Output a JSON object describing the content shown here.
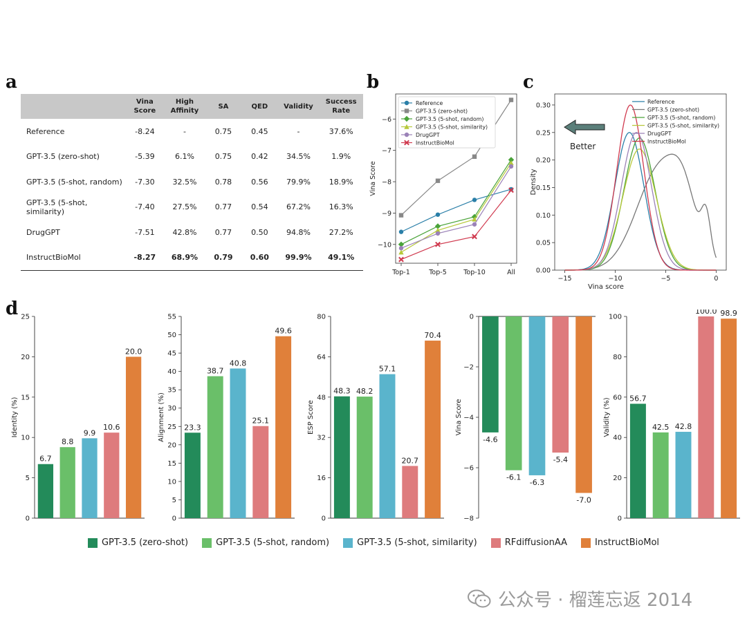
{
  "panels": {
    "a": "a",
    "b": "b",
    "c": "c",
    "d": "d"
  },
  "table": {
    "headers": [
      [
        "",
        ""
      ],
      [
        "Vina",
        "Score"
      ],
      [
        "High",
        "Affinity"
      ],
      [
        "SA",
        ""
      ],
      [
        "QED",
        ""
      ],
      [
        "Validity",
        ""
      ],
      [
        "Success",
        "Rate"
      ]
    ],
    "rows": [
      {
        "name": "Reference",
        "cells": [
          "-8.24",
          "-",
          "0.75",
          "0.45",
          "-",
          "37.6%"
        ]
      },
      {
        "name": "GPT-3.5 (zero-shot)",
        "cells": [
          "-5.39",
          "6.1%",
          "0.75",
          "0.42",
          "34.5%",
          "1.9%"
        ]
      },
      {
        "name": "GPT-3.5 (5-shot, random)",
        "cells": [
          "-7.30",
          "32.5%",
          "0.78",
          "0.56",
          "79.9%",
          "18.9%"
        ]
      },
      {
        "name": "GPT-3.5 (5-shot, similarity)",
        "cells": [
          "-7.40",
          "27.5%",
          "0.77",
          "0.54",
          "67.2%",
          "16.3%"
        ]
      },
      {
        "name": "DrugGPT",
        "cells": [
          "-7.51",
          "42.8%",
          "0.77",
          "0.50",
          "94.8%",
          "27.2%"
        ]
      },
      {
        "name": "InstructBioMol",
        "cells": [
          "-8.27",
          "68.9%",
          "0.79",
          "0.60",
          "99.9%",
          "49.1%"
        ],
        "bold": true
      }
    ]
  },
  "colors": {
    "zero": "#238b5a",
    "random": "#6abf69",
    "similarity": "#5ab4cc",
    "rfdiff": "#de7b7d",
    "instruct": "#e0803a"
  },
  "chart_data": [
    {
      "type": "line",
      "panel": "b",
      "categories": [
        "Top-1",
        "Top-5",
        "Top-10",
        "All"
      ],
      "ylabel": "Vina Score",
      "ylim": [
        -10.6,
        -5.2
      ],
      "yticks": [
        -10,
        -9,
        -8,
        -7,
        -6
      ],
      "legend_position": "top-left",
      "series": [
        {
          "name": "Reference",
          "color": "#2a7fa8",
          "marker": "circle",
          "values": [
            -9.6,
            -9.05,
            -8.58,
            -8.24
          ]
        },
        {
          "name": "GPT-3.5 (zero-shot)",
          "color": "#888888",
          "marker": "square",
          "values": [
            -9.07,
            -7.97,
            -7.2,
            -5.39
          ]
        },
        {
          "name": "GPT-3.5 (5-shot, random)",
          "color": "#4aa339",
          "marker": "diamond",
          "values": [
            -10.0,
            -9.42,
            -9.12,
            -7.3
          ]
        },
        {
          "name": "GPT-3.5 (5-shot, similarity)",
          "color": "#b7c83a",
          "marker": "triangle",
          "values": [
            -10.25,
            -9.55,
            -9.2,
            -7.4
          ]
        },
        {
          "name": "DrugGPT",
          "color": "#9b82b8",
          "marker": "circle",
          "values": [
            -10.12,
            -9.65,
            -9.36,
            -7.51
          ]
        },
        {
          "name": "InstructBioMol",
          "color": "#d0394e",
          "marker": "x",
          "values": [
            -10.48,
            -10.0,
            -9.75,
            -8.27
          ]
        }
      ]
    },
    {
      "type": "area",
      "panel": "c",
      "xlabel": "Vina score",
      "ylabel": "Density",
      "xlim": [
        -16,
        1
      ],
      "ylim": [
        0,
        0.32
      ],
      "xticks": [
        -15,
        -10,
        -5,
        0
      ],
      "yticks": [
        0.0,
        0.05,
        0.1,
        0.15,
        0.2,
        0.25,
        0.3
      ],
      "annotation": "Better",
      "legend_position": "top-right",
      "series": [
        {
          "name": "Reference",
          "color": "#2a7fa8",
          "peak_x": -8.6,
          "peak": 0.25,
          "sd": 1.45
        },
        {
          "name": "GPT-3.5 (zero-shot)",
          "color": "#777777",
          "peak_x": -5.4,
          "peak": 0.19,
          "sd": 2.4,
          "second_peak_x": -1.0,
          "second_peak": 0.07
        },
        {
          "name": "GPT-3.5 (5-shot, random)",
          "color": "#4aa339",
          "peak_x": -7.6,
          "peak": 0.24,
          "sd": 1.55
        },
        {
          "name": "GPT-3.5 (5-shot, similarity)",
          "color": "#b7c83a",
          "peak_x": -7.6,
          "peak": 0.22,
          "sd": 1.65
        },
        {
          "name": "DrugGPT",
          "color": "#9b82b8",
          "peak_x": -7.9,
          "peak": 0.25,
          "sd": 1.5
        },
        {
          "name": "InstructBioMol",
          "color": "#d0394e",
          "peak_x": -8.5,
          "peak": 0.3,
          "sd": 1.35
        }
      ]
    },
    {
      "type": "bar",
      "panel": "d1",
      "ylabel": "Identity (%)",
      "ylim": [
        0,
        25
      ],
      "yticks": [
        0,
        5,
        10,
        15,
        20,
        25
      ],
      "series": [
        {
          "name": "GPT-3.5 (zero-shot)",
          "value": 6.7,
          "label": "6.7"
        },
        {
          "name": "GPT-3.5 (5-shot, random)",
          "value": 8.8,
          "label": "8.8"
        },
        {
          "name": "GPT-3.5 (5-shot, similarity)",
          "value": 9.9,
          "label": "9.9"
        },
        {
          "name": "RFdiffusionAA",
          "value": 10.6,
          "label": "10.6"
        },
        {
          "name": "InstructBioMol",
          "value": 20.0,
          "label": "20.0"
        }
      ]
    },
    {
      "type": "bar",
      "panel": "d2",
      "ylabel": "Alignment (%)",
      "ylim": [
        0,
        55
      ],
      "yticks": [
        0,
        5,
        10,
        15,
        20,
        25,
        30,
        35,
        40,
        45,
        50,
        55
      ],
      "series": [
        {
          "name": "GPT-3.5 (zero-shot)",
          "value": 23.3,
          "label": "23.3"
        },
        {
          "name": "GPT-3.5 (5-shot, random)",
          "value": 38.7,
          "label": "38.7"
        },
        {
          "name": "GPT-3.5 (5-shot, similarity)",
          "value": 40.8,
          "label": "40.8"
        },
        {
          "name": "RFdiffusionAA",
          "value": 25.1,
          "label": "25.1"
        },
        {
          "name": "InstructBioMol",
          "value": 49.6,
          "label": "49.6"
        }
      ]
    },
    {
      "type": "bar",
      "panel": "d3",
      "ylabel": "ESP Score",
      "ylim": [
        0,
        80
      ],
      "yticks": [
        0,
        16,
        32,
        48,
        64,
        80
      ],
      "series": [
        {
          "name": "GPT-3.5 (zero-shot)",
          "value": 48.3,
          "label": "48.3"
        },
        {
          "name": "GPT-3.5 (5-shot, random)",
          "value": 48.2,
          "label": "48.2"
        },
        {
          "name": "GPT-3.5 (5-shot, similarity)",
          "value": 57.1,
          "label": "57.1"
        },
        {
          "name": "RFdiffusionAA",
          "value": 20.7,
          "label": "20.7"
        },
        {
          "name": "InstructBioMol",
          "value": 70.4,
          "label": "70.4"
        }
      ]
    },
    {
      "type": "bar",
      "panel": "d4",
      "ylabel": "Vina Score",
      "ylim": [
        -8,
        0
      ],
      "yticks": [
        0,
        -2,
        -4,
        -6,
        -8
      ],
      "inverted": true,
      "series": [
        {
          "name": "GPT-3.5 (zero-shot)",
          "value": -4.6,
          "label": "-4.6"
        },
        {
          "name": "GPT-3.5 (5-shot, random)",
          "value": -6.1,
          "label": "-6.1"
        },
        {
          "name": "GPT-3.5 (5-shot, similarity)",
          "value": -6.3,
          "label": "-6.3"
        },
        {
          "name": "RFdiffusionAA",
          "value": -5.4,
          "label": "-5.4"
        },
        {
          "name": "InstructBioMol",
          "value": -7.0,
          "label": "-7.0"
        }
      ]
    },
    {
      "type": "bar",
      "panel": "d5",
      "ylabel": "Validity (%)",
      "ylim": [
        0,
        100
      ],
      "yticks": [
        0,
        20,
        40,
        60,
        80,
        100
      ],
      "series": [
        {
          "name": "GPT-3.5 (zero-shot)",
          "value": 56.7,
          "label": "56.7"
        },
        {
          "name": "GPT-3.5 (5-shot, random)",
          "value": 42.5,
          "label": "42.5"
        },
        {
          "name": "GPT-3.5 (5-shot, similarity)",
          "value": 42.8,
          "label": "42.8"
        },
        {
          "name": "RFdiffusionAA",
          "value": 100.0,
          "label": "100.0"
        },
        {
          "name": "InstructBioMol",
          "value": 98.9,
          "label": "98.9"
        }
      ]
    }
  ],
  "legend_d": [
    {
      "label": "GPT-3.5 (zero-shot)",
      "color": "#238b5a"
    },
    {
      "label": "GPT-3.5 (5-shot, random)",
      "color": "#6abf69"
    },
    {
      "label": "GPT-3.5 (5-shot, similarity)",
      "color": "#5ab4cc"
    },
    {
      "label": "RFdiffusionAA",
      "color": "#de7b7d"
    },
    {
      "label": "InstructBioMol",
      "color": "#e0803a"
    }
  ],
  "watermark": {
    "text": "公众号 · 榴莲忘返 2014",
    "icon": "wechat-icon"
  }
}
